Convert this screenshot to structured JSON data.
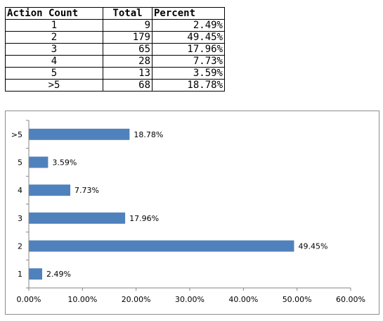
{
  "table": {
    "headers": [
      "Action Count",
      "Total",
      "Percent"
    ],
    "rows": [
      [
        "1",
        "9",
        "2.49%"
      ],
      [
        "2",
        "179",
        "49.45%"
      ],
      [
        "3",
        "65",
        "17.96%"
      ],
      [
        "4",
        "28",
        "7.73%"
      ],
      [
        "5",
        "13",
        "3.59%"
      ],
      [
        ">5",
        "68",
        "18.78%"
      ]
    ]
  },
  "chart_data": {
    "type": "bar",
    "orientation": "horizontal",
    "categories": [
      "1",
      "2",
      "3",
      "4",
      "5",
      ">5"
    ],
    "values": [
      2.49,
      49.45,
      17.96,
      7.73,
      3.59,
      18.78
    ],
    "data_labels": [
      "2.49%",
      "49.45%",
      "17.96%",
      "7.73%",
      "3.59%",
      "18.78%"
    ],
    "title": "",
    "xlabel": "",
    "ylabel": "",
    "xlim": [
      0,
      60
    ],
    "x_ticks": [
      0,
      10,
      20,
      30,
      40,
      50,
      60
    ],
    "x_tick_labels": [
      "0.00%",
      "10.00%",
      "20.00%",
      "30.00%",
      "40.00%",
      "50.00%",
      "60.00%"
    ],
    "grid": false,
    "legend": false,
    "bar_color": "#4f81bd"
  }
}
